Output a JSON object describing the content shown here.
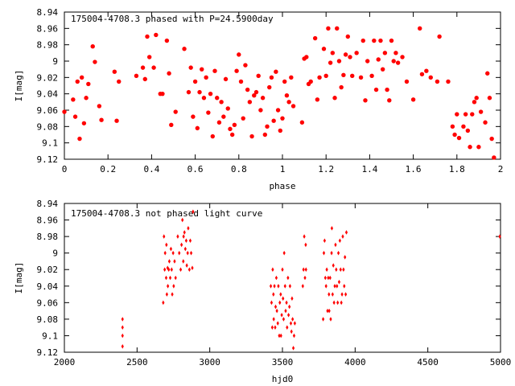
{
  "chart_data": [
    {
      "type": "scatter",
      "title": "175004-4708.3 phased with P=24.5900day",
      "xlabel": "phase",
      "ylabel": "I[mag]",
      "xlim": [
        0,
        2
      ],
      "ylim": [
        8.94,
        9.12
      ],
      "y_inverted": true,
      "grid": false,
      "marker_color": "#ff0000",
      "marker": "filled-circle",
      "x_ticks": [
        "0",
        "0.2",
        "0.4",
        "0.6",
        "0.8",
        "1",
        "1.2",
        "1.4",
        "1.6",
        "1.8",
        "2"
      ],
      "y_ticks": [
        "8.94",
        "8.96",
        "8.98",
        "9",
        "9.02",
        "9.04",
        "9.06",
        "9.08",
        "9.1",
        "9.12"
      ],
      "points": [
        [
          0.0,
          9.062
        ],
        [
          0.04,
          9.047
        ],
        [
          0.05,
          9.068
        ],
        [
          0.06,
          9.025
        ],
        [
          0.07,
          9.095
        ],
        [
          0.08,
          9.02
        ],
        [
          0.09,
          9.076
        ],
        [
          0.1,
          9.045
        ],
        [
          0.11,
          9.028
        ],
        [
          0.13,
          8.982
        ],
        [
          0.14,
          9.001
        ],
        [
          0.16,
          9.055
        ],
        [
          0.17,
          9.072
        ],
        [
          0.23,
          9.013
        ],
        [
          0.24,
          9.073
        ],
        [
          0.25,
          9.025
        ],
        [
          0.33,
          9.018
        ],
        [
          0.36,
          9.008
        ],
        [
          0.37,
          9.022
        ],
        [
          0.38,
          8.97
        ],
        [
          0.39,
          8.995
        ],
        [
          0.41,
          9.008
        ],
        [
          0.42,
          8.968
        ],
        [
          0.44,
          9.04
        ],
        [
          0.45,
          9.04
        ],
        [
          0.47,
          8.975
        ],
        [
          0.48,
          9.015
        ],
        [
          0.49,
          9.078
        ],
        [
          0.51,
          9.062
        ],
        [
          0.55,
          8.985
        ],
        [
          0.57,
          9.038
        ],
        [
          0.58,
          9.008
        ],
        [
          0.59,
          9.068
        ],
        [
          0.6,
          9.025
        ],
        [
          0.61,
          9.082
        ],
        [
          0.62,
          9.038
        ],
        [
          0.63,
          9.01
        ],
        [
          0.64,
          9.045
        ],
        [
          0.65,
          9.02
        ],
        [
          0.66,
          9.063
        ],
        [
          0.67,
          9.04
        ],
        [
          0.68,
          9.092
        ],
        [
          0.69,
          9.012
        ],
        [
          0.7,
          9.045
        ],
        [
          0.71,
          9.075
        ],
        [
          0.72,
          9.05
        ],
        [
          0.73,
          9.068
        ],
        [
          0.74,
          9.022
        ],
        [
          0.75,
          9.058
        ],
        [
          0.76,
          9.083
        ],
        [
          0.77,
          9.09
        ],
        [
          0.78,
          9.078
        ],
        [
          0.79,
          9.012
        ],
        [
          0.8,
          8.992
        ],
        [
          0.81,
          9.025
        ],
        [
          0.82,
          9.07
        ],
        [
          0.83,
          9.005
        ],
        [
          0.84,
          9.035
        ],
        [
          0.85,
          9.05
        ],
        [
          0.86,
          9.092
        ],
        [
          0.87,
          9.042
        ],
        [
          0.88,
          9.038
        ],
        [
          0.89,
          9.018
        ],
        [
          0.9,
          9.06
        ],
        [
          0.91,
          9.045
        ],
        [
          0.92,
          9.09
        ],
        [
          0.93,
          9.08
        ],
        [
          0.94,
          9.032
        ],
        [
          0.95,
          9.02
        ],
        [
          0.96,
          9.073
        ],
        [
          0.97,
          9.013
        ],
        [
          0.98,
          9.06
        ],
        [
          0.99,
          9.085
        ],
        [
          1.0,
          9.07
        ],
        [
          1.01,
          9.025
        ],
        [
          1.02,
          9.042
        ],
        [
          1.03,
          9.05
        ],
        [
          1.04,
          9.02
        ],
        [
          1.05,
          9.055
        ],
        [
          1.09,
          9.075
        ],
        [
          1.1,
          8.997
        ],
        [
          1.11,
          8.995
        ],
        [
          1.12,
          9.028
        ],
        [
          1.13,
          9.025
        ],
        [
          1.15,
          8.972
        ],
        [
          1.16,
          9.047
        ],
        [
          1.17,
          9.02
        ],
        [
          1.19,
          8.985
        ],
        [
          1.2,
          9.018
        ],
        [
          1.21,
          8.96
        ],
        [
          1.22,
          9.002
        ],
        [
          1.23,
          8.99
        ],
        [
          1.24,
          9.045
        ],
        [
          1.25,
          8.96
        ],
        [
          1.26,
          9.0
        ],
        [
          1.27,
          9.032
        ],
        [
          1.28,
          9.017
        ],
        [
          1.29,
          8.992
        ],
        [
          1.3,
          8.97
        ],
        [
          1.31,
          8.995
        ],
        [
          1.32,
          9.018
        ],
        [
          1.34,
          8.99
        ],
        [
          1.36,
          9.02
        ],
        [
          1.37,
          8.975
        ],
        [
          1.38,
          9.048
        ],
        [
          1.39,
          9.0
        ],
        [
          1.41,
          9.018
        ],
        [
          1.42,
          8.975
        ],
        [
          1.43,
          9.035
        ],
        [
          1.44,
          8.998
        ],
        [
          1.45,
          8.975
        ],
        [
          1.46,
          9.01
        ],
        [
          1.47,
          8.99
        ],
        [
          1.48,
          9.035
        ],
        [
          1.49,
          9.048
        ],
        [
          1.5,
          8.975
        ],
        [
          1.51,
          9.0
        ],
        [
          1.52,
          8.99
        ],
        [
          1.53,
          9.002
        ],
        [
          1.55,
          8.995
        ],
        [
          1.57,
          9.025
        ],
        [
          1.6,
          9.047
        ],
        [
          1.63,
          8.96
        ],
        [
          1.64,
          9.016
        ],
        [
          1.66,
          9.012
        ],
        [
          1.68,
          9.02
        ],
        [
          1.71,
          9.025
        ],
        [
          1.72,
          8.97
        ],
        [
          1.76,
          9.025
        ],
        [
          1.78,
          9.08
        ],
        [
          1.79,
          9.09
        ],
        [
          1.8,
          9.065
        ],
        [
          1.81,
          9.094
        ],
        [
          1.83,
          9.08
        ],
        [
          1.84,
          9.065
        ],
        [
          1.85,
          9.085
        ],
        [
          1.86,
          9.105
        ],
        [
          1.87,
          9.065
        ],
        [
          1.88,
          9.05
        ],
        [
          1.89,
          9.045
        ],
        [
          1.9,
          9.105
        ],
        [
          1.91,
          9.062
        ],
        [
          1.93,
          9.075
        ],
        [
          1.94,
          9.015
        ],
        [
          1.95,
          9.045
        ],
        [
          1.96,
          9.095
        ],
        [
          1.97,
          9.118
        ]
      ]
    },
    {
      "type": "scatter",
      "title": "175004-4708.3 not phased light curve",
      "xlabel": "hjd0",
      "ylabel": "I[mag]",
      "xlim": [
        2000,
        5000
      ],
      "ylim": [
        8.94,
        9.12
      ],
      "y_inverted": true,
      "grid": false,
      "marker_color": "#ff0000",
      "marker": "small-diamond",
      "x_ticks": [
        "2000",
        "2500",
        "3000",
        "3500",
        "4000",
        "4500",
        "5000"
      ],
      "y_ticks": [
        "8.94",
        "8.96",
        "8.98",
        "9",
        "9.02",
        "9.04",
        "9.06",
        "9.08",
        "9.1",
        "9.12"
      ],
      "points": [
        [
          2400,
          9.08
        ],
        [
          2400,
          9.09
        ],
        [
          2400,
          9.1
        ],
        [
          2400,
          9.113
        ],
        [
          2680,
          9.06
        ],
        [
          2685,
          8.98
        ],
        [
          2690,
          9.02
        ],
        [
          2693,
          9.0
        ],
        [
          2700,
          9.03
        ],
        [
          2702,
          8.99
        ],
        [
          2705,
          9.05
        ],
        [
          2710,
          9.018
        ],
        [
          2712,
          9.04
        ],
        [
          2718,
          9.02
        ],
        [
          2722,
          9.01
        ],
        [
          2728,
          9.03
        ],
        [
          2733,
          8.995
        ],
        [
          2738,
          9.02
        ],
        [
          2742,
          9.05
        ],
        [
          2748,
          9.0
        ],
        [
          2752,
          9.04
        ],
        [
          2758,
          9.01
        ],
        [
          2765,
          9.03
        ],
        [
          2780,
          8.98
        ],
        [
          2790,
          9.0
        ],
        [
          2800,
          9.02
        ],
        [
          2806,
          8.99
        ],
        [
          2812,
          8.96
        ],
        [
          2818,
          9.01
        ],
        [
          2820,
          8.98
        ],
        [
          2826,
          8.975
        ],
        [
          2832,
          8.995
        ],
        [
          2838,
          8.985
        ],
        [
          2842,
          9.015
        ],
        [
          2848,
          9.0
        ],
        [
          2852,
          8.97
        ],
        [
          2860,
          9.02
        ],
        [
          2866,
          8.985
        ],
        [
          2872,
          9.0
        ],
        [
          2880,
          9.018
        ],
        [
          2885,
          8.95
        ],
        [
          3420,
          9.04
        ],
        [
          3425,
          9.06
        ],
        [
          3430,
          9.09
        ],
        [
          3433,
          9.02
        ],
        [
          3438,
          9.05
        ],
        [
          3440,
          9.08
        ],
        [
          3445,
          9.04
        ],
        [
          3450,
          9.09
        ],
        [
          3453,
          9.065
        ],
        [
          3458,
          9.03
        ],
        [
          3462,
          9.07
        ],
        [
          3468,
          9.085
        ],
        [
          3472,
          9.04
        ],
        [
          3478,
          9.1
        ],
        [
          3482,
          9.06
        ],
        [
          3488,
          9.05
        ],
        [
          3490,
          9.1
        ],
        [
          3495,
          9.075
        ],
        [
          3500,
          9.02
        ],
        [
          3504,
          9.055
        ],
        [
          3508,
          9.08
        ],
        [
          3512,
          9.0
        ],
        [
          3518,
          9.04
        ],
        [
          3522,
          9.07
        ],
        [
          3528,
          9.06
        ],
        [
          3532,
          9.09
        ],
        [
          3538,
          9.03
        ],
        [
          3542,
          9.075
        ],
        [
          3548,
          9.065
        ],
        [
          3552,
          9.04
        ],
        [
          3558,
          9.085
        ],
        [
          3562,
          9.095
        ],
        [
          3566,
          9.055
        ],
        [
          3570,
          9.08
        ],
        [
          3575,
          9.115
        ],
        [
          3580,
          9.1
        ],
        [
          3585,
          9.085
        ],
        [
          3640,
          9.04
        ],
        [
          3645,
          9.02
        ],
        [
          3650,
          8.98
        ],
        [
          3655,
          9.03
        ],
        [
          3660,
          8.99
        ],
        [
          3662,
          9.02
        ],
        [
          3780,
          9.08
        ],
        [
          3785,
          9.0
        ],
        [
          3790,
          8.985
        ],
        [
          3795,
          9.03
        ],
        [
          3800,
          9.04
        ],
        [
          3805,
          9.02
        ],
        [
          3810,
          9.07
        ],
        [
          3815,
          9.03
        ],
        [
          3820,
          9.05
        ],
        [
          3822,
          9.07
        ],
        [
          3828,
          9.03
        ],
        [
          3832,
          9.08
        ],
        [
          3838,
          9.0
        ],
        [
          3840,
          8.97
        ],
        [
          3845,
          9.05
        ],
        [
          3850,
          9.015
        ],
        [
          3855,
          9.06
        ],
        [
          3860,
          9.04
        ],
        [
          3865,
          8.99
        ],
        [
          3870,
          9.02
        ],
        [
          3875,
          9.04
        ],
        [
          3880,
          9.06
        ],
        [
          3885,
          9.0
        ],
        [
          3890,
          9.035
        ],
        [
          3895,
          8.985
        ],
        [
          3900,
          9.02
        ],
        [
          3905,
          9.06
        ],
        [
          3910,
          9.05
        ],
        [
          3915,
          8.98
        ],
        [
          3920,
          9.02
        ],
        [
          3925,
          9.04
        ],
        [
          3930,
          9.005
        ],
        [
          3935,
          9.05
        ],
        [
          3940,
          8.975
        ],
        [
          4995,
          8.98
        ]
      ]
    }
  ]
}
